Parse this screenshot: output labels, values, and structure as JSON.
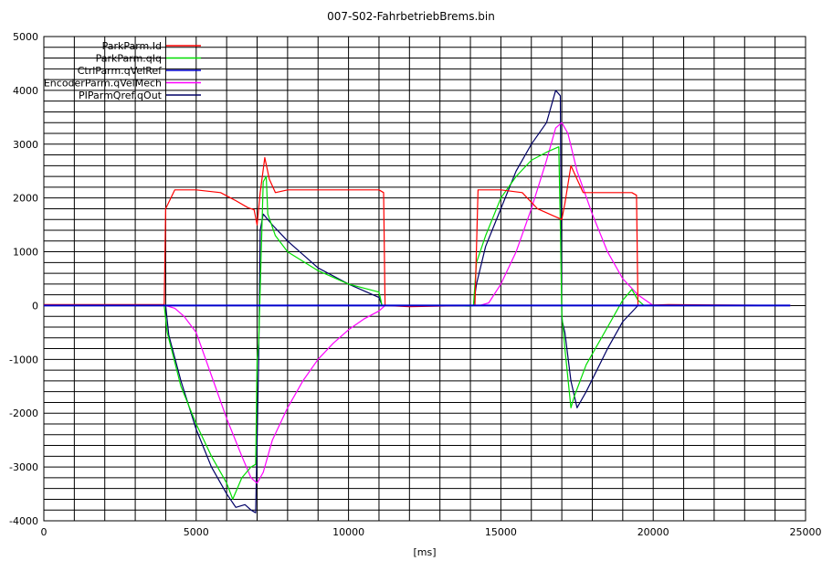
{
  "chart_data": {
    "type": "line",
    "title": "007-S02-FahrbetriebBrems.bin",
    "xlabel": "[ms]",
    "ylabel": "",
    "xlim": [
      0,
      25000
    ],
    "ylim": [
      -4000,
      5000
    ],
    "x_ticks": [
      0,
      5000,
      10000,
      15000,
      20000,
      25000
    ],
    "y_ticks": [
      -4000,
      -3000,
      -2000,
      -1000,
      0,
      1000,
      2000,
      3000,
      4000,
      5000
    ],
    "x_minor_step": 1000,
    "y_minor_step": 200,
    "grid": true,
    "legend_position": "top-left",
    "series": [
      {
        "name": "ParkParm.Id",
        "color": "#ff0000",
        "points": [
          [
            0,
            20
          ],
          [
            3950,
            20
          ],
          [
            4000,
            1800
          ],
          [
            4300,
            2150
          ],
          [
            5000,
            2150
          ],
          [
            5800,
            2100
          ],
          [
            6300,
            1950
          ],
          [
            6700,
            1820
          ],
          [
            6900,
            1780
          ],
          [
            7000,
            1500
          ],
          [
            7100,
            2100
          ],
          [
            7250,
            2750
          ],
          [
            7400,
            2350
          ],
          [
            7600,
            2100
          ],
          [
            8000,
            2150
          ],
          [
            9000,
            2150
          ],
          [
            10000,
            2150
          ],
          [
            11000,
            2150
          ],
          [
            11150,
            2100
          ],
          [
            11200,
            0
          ],
          [
            12000,
            -20
          ],
          [
            14000,
            0
          ],
          [
            14150,
            0
          ],
          [
            14250,
            2150
          ],
          [
            15000,
            2150
          ],
          [
            15700,
            2100
          ],
          [
            16200,
            1800
          ],
          [
            16800,
            1650
          ],
          [
            17000,
            1600
          ],
          [
            17100,
            1900
          ],
          [
            17300,
            2600
          ],
          [
            17500,
            2350
          ],
          [
            17700,
            2100
          ],
          [
            18500,
            2100
          ],
          [
            19300,
            2100
          ],
          [
            19450,
            2050
          ],
          [
            19500,
            0
          ],
          [
            20500,
            20
          ],
          [
            24500,
            0
          ]
        ]
      },
      {
        "name": "ParkParm.qIq",
        "color": "#00dd00",
        "points": [
          [
            0,
            0
          ],
          [
            3950,
            0
          ],
          [
            4050,
            -500
          ],
          [
            4500,
            -1500
          ],
          [
            5000,
            -2200
          ],
          [
            5500,
            -2800
          ],
          [
            6000,
            -3300
          ],
          [
            6200,
            -3600
          ],
          [
            6500,
            -3200
          ],
          [
            6800,
            -3000
          ],
          [
            6950,
            -2950
          ],
          [
            7000,
            -1000
          ],
          [
            7050,
            -700
          ],
          [
            7200,
            2300
          ],
          [
            7300,
            2400
          ],
          [
            7350,
            1700
          ],
          [
            7600,
            1300
          ],
          [
            8000,
            1000
          ],
          [
            9000,
            650
          ],
          [
            10000,
            400
          ],
          [
            11000,
            250
          ],
          [
            11100,
            0
          ],
          [
            12000,
            0
          ],
          [
            14000,
            -10
          ],
          [
            14100,
            0
          ],
          [
            14200,
            800
          ],
          [
            14500,
            1300
          ],
          [
            15000,
            2000
          ],
          [
            15500,
            2400
          ],
          [
            16000,
            2700
          ],
          [
            16500,
            2850
          ],
          [
            16900,
            2950
          ],
          [
            16950,
            1500
          ],
          [
            17000,
            -150
          ],
          [
            17100,
            -800
          ],
          [
            17300,
            -1900
          ],
          [
            17400,
            -1700
          ],
          [
            17800,
            -1100
          ],
          [
            18500,
            -400
          ],
          [
            19000,
            100
          ],
          [
            19300,
            300
          ],
          [
            19500,
            100
          ],
          [
            19700,
            0
          ],
          [
            20500,
            0
          ],
          [
            24500,
            0
          ]
        ]
      },
      {
        "name": "CtrlParm.qVelRef",
        "color": "#0000cc",
        "points": [
          [
            0,
            0
          ],
          [
            24500,
            0
          ]
        ]
      },
      {
        "name": "EncoderParm.qVelMech",
        "color": "#ff00ff",
        "points": [
          [
            0,
            0
          ],
          [
            4000,
            0
          ],
          [
            4300,
            -50
          ],
          [
            4600,
            -200
          ],
          [
            5000,
            -500
          ],
          [
            5500,
            -1300
          ],
          [
            6000,
            -2100
          ],
          [
            6500,
            -2800
          ],
          [
            6800,
            -3200
          ],
          [
            7000,
            -3300
          ],
          [
            7200,
            -3100
          ],
          [
            7500,
            -2500
          ],
          [
            8000,
            -1900
          ],
          [
            8500,
            -1400
          ],
          [
            9000,
            -1000
          ],
          [
            9500,
            -700
          ],
          [
            10000,
            -450
          ],
          [
            10500,
            -250
          ],
          [
            11000,
            -100
          ],
          [
            11200,
            0
          ],
          [
            14000,
            0
          ],
          [
            14300,
            0
          ],
          [
            14600,
            50
          ],
          [
            15000,
            400
          ],
          [
            15500,
            1000
          ],
          [
            16000,
            1800
          ],
          [
            16500,
            2700
          ],
          [
            16800,
            3300
          ],
          [
            17000,
            3400
          ],
          [
            17200,
            3200
          ],
          [
            17500,
            2500
          ],
          [
            18000,
            1700
          ],
          [
            18500,
            1000
          ],
          [
            19000,
            500
          ],
          [
            19500,
            200
          ],
          [
            20000,
            0
          ],
          [
            24500,
            0
          ]
        ]
      },
      {
        "name": "PIParmQref.qOut",
        "color": "#000066",
        "points": [
          [
            0,
            0
          ],
          [
            4000,
            0
          ],
          [
            4100,
            -550
          ],
          [
            4500,
            -1400
          ],
          [
            5000,
            -2300
          ],
          [
            5500,
            -3000
          ],
          [
            6000,
            -3500
          ],
          [
            6300,
            -3750
          ],
          [
            6600,
            -3700
          ],
          [
            6800,
            -3800
          ],
          [
            6950,
            -3850
          ],
          [
            7000,
            -2500
          ],
          [
            7050,
            -1000
          ],
          [
            7100,
            1400
          ],
          [
            7200,
            1700
          ],
          [
            7500,
            1500
          ],
          [
            8000,
            1200
          ],
          [
            9000,
            700
          ],
          [
            10000,
            400
          ],
          [
            11000,
            150
          ],
          [
            11100,
            0
          ],
          [
            14000,
            0
          ],
          [
            14100,
            0
          ],
          [
            14200,
            400
          ],
          [
            14500,
            1100
          ],
          [
            15000,
            1800
          ],
          [
            15500,
            2500
          ],
          [
            16000,
            3000
          ],
          [
            16500,
            3400
          ],
          [
            16800,
            4000
          ],
          [
            16950,
            3900
          ],
          [
            17000,
            -250
          ],
          [
            17100,
            -500
          ],
          [
            17300,
            -1400
          ],
          [
            17500,
            -1900
          ],
          [
            17800,
            -1600
          ],
          [
            18500,
            -800
          ],
          [
            19000,
            -300
          ],
          [
            19500,
            0
          ],
          [
            20000,
            0
          ],
          [
            24500,
            0
          ]
        ]
      }
    ]
  }
}
